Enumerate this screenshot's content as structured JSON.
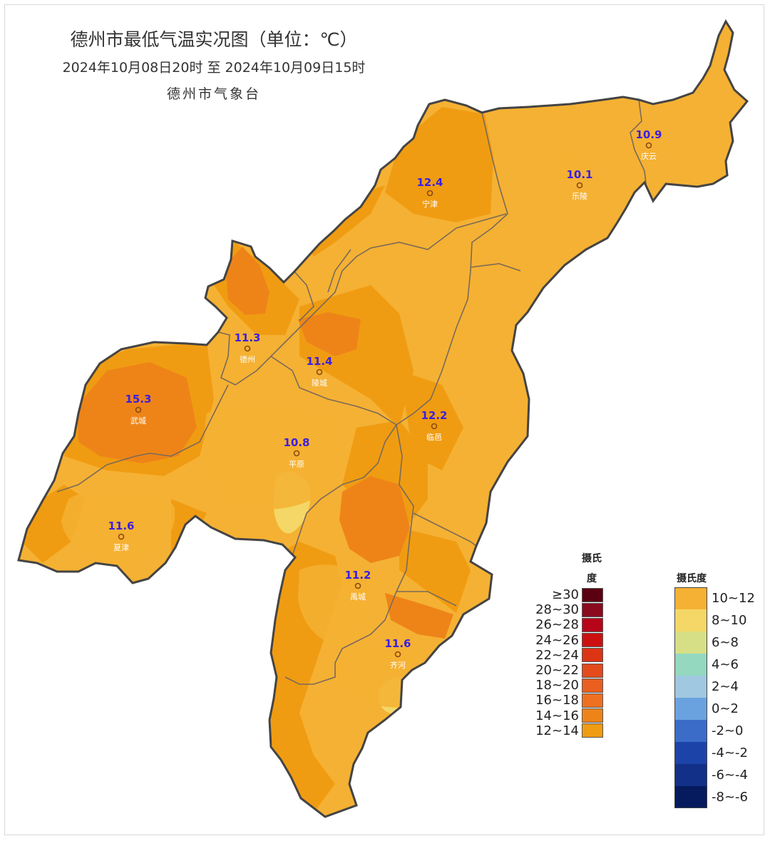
{
  "title": "德州市最低气温实况图（单位：℃）",
  "time_range": "2024年10月08日20时  至  2024年10月09日15时",
  "organization": "德州市气象台",
  "stations": [
    {
      "name": "庆云",
      "value": "10.9"
    },
    {
      "name": "乐陵",
      "value": "10.1"
    },
    {
      "name": "宁津",
      "value": "12.4"
    },
    {
      "name": "德州",
      "value": "11.3"
    },
    {
      "name": "陵城",
      "value": "11.4"
    },
    {
      "name": "武城",
      "value": "15.3"
    },
    {
      "name": "临邑",
      "value": "12.2"
    },
    {
      "name": "平原",
      "value": "10.8"
    },
    {
      "name": "夏津",
      "value": "11.6"
    },
    {
      "name": "禹城",
      "value": "11.2"
    },
    {
      "name": "齐河",
      "value": "11.6"
    }
  ],
  "legend_warm": {
    "title_line1": "摄氏",
    "title_line2": "度",
    "items": [
      {
        "label": "≥30",
        "color": "#5a0010"
      },
      {
        "label": "28~30",
        "color": "#8a0a1e"
      },
      {
        "label": "26~28",
        "color": "#b80418"
      },
      {
        "label": "24~26",
        "color": "#cc1010"
      },
      {
        "label": "22~24",
        "color": "#dc3414"
      },
      {
        "label": "20~22",
        "color": "#e34a1c"
      },
      {
        "label": "18~20",
        "color": "#ea5e20"
      },
      {
        "label": "16~18",
        "color": "#ee7020"
      },
      {
        "label": "14~16",
        "color": "#ee8418"
      },
      {
        "label": "12~14",
        "color": "#f09c12"
      }
    ]
  },
  "legend_cool": {
    "title": "摄氏度",
    "items": [
      {
        "label": "10~12",
        "color": "#f5b133"
      },
      {
        "label": "8~10",
        "color": "#f4d766"
      },
      {
        "label": "6~8",
        "color": "#d6df86"
      },
      {
        "label": "4~6",
        "color": "#94d8c0"
      },
      {
        "label": "2~4",
        "color": "#a0c8e0"
      },
      {
        "label": "0~2",
        "color": "#6aa2e0"
      },
      {
        "label": "-2~0",
        "color": "#3a6cc8"
      },
      {
        "label": "-4~-2",
        "color": "#1c44a8"
      },
      {
        "label": "-6~-4",
        "color": "#123088"
      },
      {
        "label": "-8~-6",
        "color": "#061a5e"
      }
    ]
  },
  "map_colors": {
    "base": "#f5b133",
    "warm": "#f09c12",
    "hot": "#ee8418",
    "cool": "#f4d766",
    "border": "#444444",
    "county_line": "#7a6a5a"
  }
}
